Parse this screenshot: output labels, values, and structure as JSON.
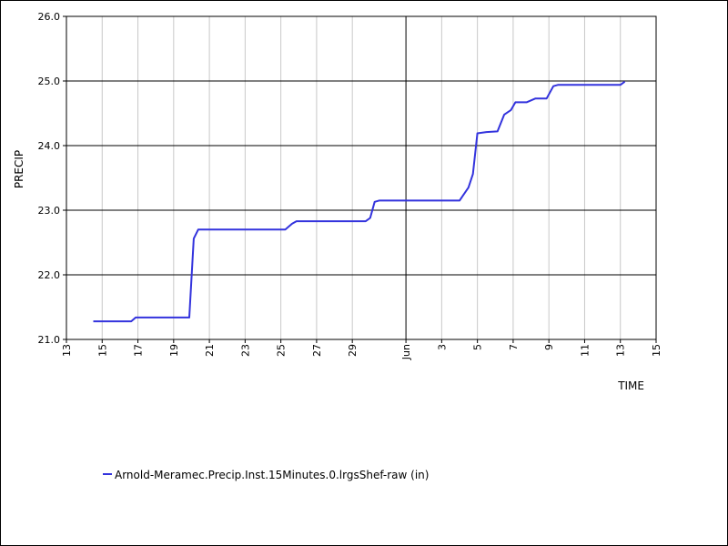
{
  "chart_data": {
    "type": "line",
    "title": "",
    "xlabel": "TIME",
    "ylabel": "PRECIP",
    "ylim": [
      21.0,
      26.0
    ],
    "yticks": [
      "21.0",
      "22.0",
      "23.0",
      "24.0",
      "25.0",
      "26.0"
    ],
    "xlim": [
      "2023-05-13",
      "2023-06-15"
    ],
    "xticks": [
      {
        "date": "2023-05-13",
        "label": "13"
      },
      {
        "date": "2023-05-15",
        "label": "15"
      },
      {
        "date": "2023-05-17",
        "label": "17"
      },
      {
        "date": "2023-05-19",
        "label": "19"
      },
      {
        "date": "2023-05-21",
        "label": "21"
      },
      {
        "date": "2023-05-23",
        "label": "23"
      },
      {
        "date": "2023-05-25",
        "label": "25"
      },
      {
        "date": "2023-05-27",
        "label": "27"
      },
      {
        "date": "2023-05-29",
        "label": "29"
      },
      {
        "date": "2023-06-01",
        "label": "Jun"
      },
      {
        "date": "2023-06-03",
        "label": "3"
      },
      {
        "date": "2023-06-05",
        "label": "5"
      },
      {
        "date": "2023-06-07",
        "label": "7"
      },
      {
        "date": "2023-06-09",
        "label": "9"
      },
      {
        "date": "2023-06-11",
        "label": "11"
      },
      {
        "date": "2023-06-13",
        "label": "13"
      },
      {
        "date": "2023-06-15",
        "label": "15"
      }
    ],
    "grid": true,
    "legend_position": "bottom-left",
    "series": [
      {
        "name": "Arnold-Meramec.Precip.Inst.15Minutes.0.lrgsShef-raw (in)",
        "color": "#3333dd",
        "points": [
          [
            "2023-05-14 12:00",
            21.28
          ],
          [
            "2023-05-16 15:00",
            21.28
          ],
          [
            "2023-05-16 21:00",
            21.34
          ],
          [
            "2023-05-19 21:00",
            21.34
          ],
          [
            "2023-05-20 03:00",
            22.56
          ],
          [
            "2023-05-20 09:00",
            22.7
          ],
          [
            "2023-05-25 06:00",
            22.7
          ],
          [
            "2023-05-25 15:00",
            22.79
          ],
          [
            "2023-05-25 21:00",
            22.83
          ],
          [
            "2023-05-29 18:00",
            22.83
          ],
          [
            "2023-05-30 00:00",
            22.88
          ],
          [
            "2023-05-30 06:00",
            23.13
          ],
          [
            "2023-05-30 12:00",
            23.15
          ],
          [
            "2023-06-04 00:00",
            23.15
          ],
          [
            "2023-06-04 12:00",
            23.35
          ],
          [
            "2023-06-04 18:00",
            23.56
          ],
          [
            "2023-06-05 00:00",
            24.19
          ],
          [
            "2023-06-05 12:00",
            24.21
          ],
          [
            "2023-06-06 03:00",
            24.22
          ],
          [
            "2023-06-06 12:00",
            24.48
          ],
          [
            "2023-06-06 21:00",
            24.55
          ],
          [
            "2023-06-07 03:00",
            24.67
          ],
          [
            "2023-06-07 18:00",
            24.67
          ],
          [
            "2023-06-08 06:00",
            24.73
          ],
          [
            "2023-06-08 21:00",
            24.73
          ],
          [
            "2023-06-09 06:00",
            24.92
          ],
          [
            "2023-06-09 12:00",
            24.94
          ],
          [
            "2023-06-13 00:00",
            24.94
          ],
          [
            "2023-06-13 06:00",
            24.99
          ]
        ]
      }
    ]
  }
}
